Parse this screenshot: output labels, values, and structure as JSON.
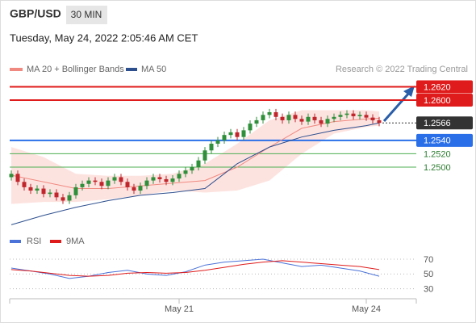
{
  "header": {
    "symbol": "GBP/USD",
    "timeframe": "30 MIN",
    "datetime": "Tuesday, May 24, 2022 2:05:46 AM CET"
  },
  "chart_data": {
    "type": "candlestick",
    "legend": {
      "ma20": "MA 20 + Bollinger Bands",
      "ma50": "MA 50",
      "source": "Research © 2022 Trading Central"
    },
    "up_color": "#2f8f3a",
    "down_color": "#c0262b",
    "ma20_color": "#f08a80",
    "band_color": "#fde3e0",
    "ma50_color": "#2d4f8e",
    "xlim": [
      -0.25,
      62.75
    ],
    "ylim": [
      1.2412,
      1.2629
    ],
    "xticks": [
      {
        "value": 26,
        "label": "May 21"
      },
      {
        "value": 55,
        "label": "May 24"
      }
    ],
    "candles": {
      "open": [
        1.2485,
        1.249,
        1.2478,
        1.247,
        1.2465,
        1.2468,
        1.246,
        1.2462,
        1.2455,
        1.245,
        1.2458,
        1.247,
        1.2475,
        1.248,
        1.2478,
        1.2472,
        1.248,
        1.2485,
        1.2478,
        1.247,
        1.2465,
        1.2472,
        1.248,
        1.2485,
        1.2482,
        1.2478,
        1.2483,
        1.249,
        1.2495,
        1.25,
        1.251,
        1.2525,
        1.2535,
        1.254,
        1.2548,
        1.2552,
        1.2545,
        1.2555,
        1.2565,
        1.257,
        1.2578,
        1.2582,
        1.2575,
        1.257,
        1.2578,
        1.2572,
        1.2568,
        1.2575,
        1.257,
        1.2565,
        1.2572,
        1.2575,
        1.2578,
        1.258,
        1.2576,
        1.2578,
        1.2574,
        1.257
      ],
      "high": [
        1.2495,
        1.2495,
        1.2483,
        1.2475,
        1.2473,
        1.2473,
        1.2467,
        1.2467,
        1.246,
        1.2463,
        1.2475,
        1.248,
        1.2485,
        1.2485,
        1.2483,
        1.2485,
        1.249,
        1.249,
        1.2483,
        1.2475,
        1.2477,
        1.2485,
        1.249,
        1.249,
        1.2487,
        1.2488,
        1.2495,
        1.25,
        1.2505,
        1.2515,
        1.253,
        1.254,
        1.2545,
        1.2553,
        1.2557,
        1.2557,
        1.256,
        1.257,
        1.2575,
        1.2583,
        1.2587,
        1.2587,
        1.258,
        1.2583,
        1.2583,
        1.2577,
        1.258,
        1.258,
        1.2575,
        1.2577,
        1.258,
        1.2583,
        1.2585,
        1.2585,
        1.2583,
        1.2583,
        1.2579,
        1.2575
      ],
      "low": [
        1.248,
        1.2473,
        1.2465,
        1.246,
        1.246,
        1.2455,
        1.2455,
        1.245,
        1.2445,
        1.2445,
        1.2453,
        1.2465,
        1.247,
        1.2473,
        1.2467,
        1.2467,
        1.2475,
        1.2473,
        1.2465,
        1.246,
        1.246,
        1.2467,
        1.2475,
        1.2477,
        1.2473,
        1.2473,
        1.2478,
        1.2485,
        1.249,
        1.2495,
        1.2505,
        1.252,
        1.253,
        1.2535,
        1.2543,
        1.254,
        1.254,
        1.255,
        1.256,
        1.2565,
        1.2573,
        1.257,
        1.2565,
        1.2565,
        1.2567,
        1.2563,
        1.2563,
        1.2565,
        1.256,
        1.256,
        1.2567,
        1.257,
        1.2573,
        1.2571,
        1.2571,
        1.2569,
        1.2565,
        1.2561
      ],
      "close": [
        1.249,
        1.2478,
        1.247,
        1.2465,
        1.2468,
        1.246,
        1.2462,
        1.2455,
        1.245,
        1.2458,
        1.247,
        1.2475,
        1.248,
        1.2478,
        1.2472,
        1.248,
        1.2485,
        1.2478,
        1.247,
        1.2465,
        1.2472,
        1.248,
        1.2485,
        1.2482,
        1.2478,
        1.2483,
        1.249,
        1.2495,
        1.25,
        1.251,
        1.2525,
        1.2535,
        1.254,
        1.2548,
        1.2552,
        1.2545,
        1.2555,
        1.2565,
        1.257,
        1.2578,
        1.2582,
        1.2575,
        1.257,
        1.2578,
        1.2572,
        1.2568,
        1.2575,
        1.257,
        1.2565,
        1.2572,
        1.2575,
        1.2578,
        1.258,
        1.2576,
        1.2578,
        1.2574,
        1.257,
        1.2566
      ]
    },
    "bollinger": {
      "x": [
        0,
        5,
        10,
        15,
        20,
        25,
        30,
        35,
        40,
        45,
        50,
        55,
        57
      ],
      "ma20": [
        1.2488,
        1.2478,
        1.2468,
        1.2468,
        1.2472,
        1.2476,
        1.248,
        1.25,
        1.253,
        1.2558,
        1.2568,
        1.2572,
        1.2573
      ],
      "upper": [
        1.253,
        1.2515,
        1.249,
        1.2487,
        1.2487,
        1.249,
        1.2505,
        1.2535,
        1.257,
        1.2585,
        1.2585,
        1.2585,
        1.2583
      ],
      "lower": [
        1.2445,
        1.2448,
        1.2448,
        1.2452,
        1.2458,
        1.2465,
        1.2462,
        1.2465,
        1.248,
        1.252,
        1.255,
        1.256,
        1.2562
      ]
    },
    "ma50": {
      "x": [
        0,
        5,
        10,
        15,
        20,
        25,
        30,
        35,
        40,
        45,
        50,
        55,
        57
      ],
      "values": [
        1.2414,
        1.2428,
        1.244,
        1.245,
        1.2458,
        1.2462,
        1.2468,
        1.2505,
        1.253,
        1.2545,
        1.2555,
        1.2562,
        1.2566
      ]
    },
    "levels": [
      {
        "value": 1.262,
        "label": "1.2620"
      },
      {
        "value": 1.26,
        "label": "1.2600"
      },
      {
        "value": 1.2566,
        "label": "1.2566"
      },
      {
        "value": 1.254,
        "label": "1.2540"
      },
      {
        "value": 1.252,
        "label": "1.2520"
      },
      {
        "value": 1.25,
        "label": "1.2500"
      }
    ],
    "level_colors": [
      "#e01b1b",
      "#e01b1b",
      "#333333",
      "#2a6fe8",
      "#4caf50",
      "#4caf50"
    ],
    "level_boxed": [
      true,
      true,
      true,
      true,
      false,
      false
    ],
    "rsi": {
      "legend": {
        "rsi": "RSI",
        "ma": "9MA"
      },
      "rsi_color": "#4a72d8",
      "ma_color": "#e01b1b",
      "ylim": [
        22,
        82
      ],
      "yticks": [
        70,
        50,
        30
      ],
      "x": [
        0,
        3,
        6,
        9,
        12,
        15,
        18,
        21,
        24,
        27,
        30,
        33,
        36,
        39,
        42,
        45,
        48,
        51,
        54,
        57
      ],
      "rsi_values": [
        58,
        54,
        50,
        44,
        47,
        52,
        55,
        50,
        48,
        53,
        62,
        66,
        68,
        70,
        65,
        60,
        62,
        58,
        54,
        47
      ],
      "ma_values": [
        56,
        54,
        51,
        48,
        47,
        48,
        51,
        52,
        51,
        52,
        55,
        59,
        63,
        66,
        68,
        66,
        64,
        62,
        60,
        56
      ]
    }
  }
}
